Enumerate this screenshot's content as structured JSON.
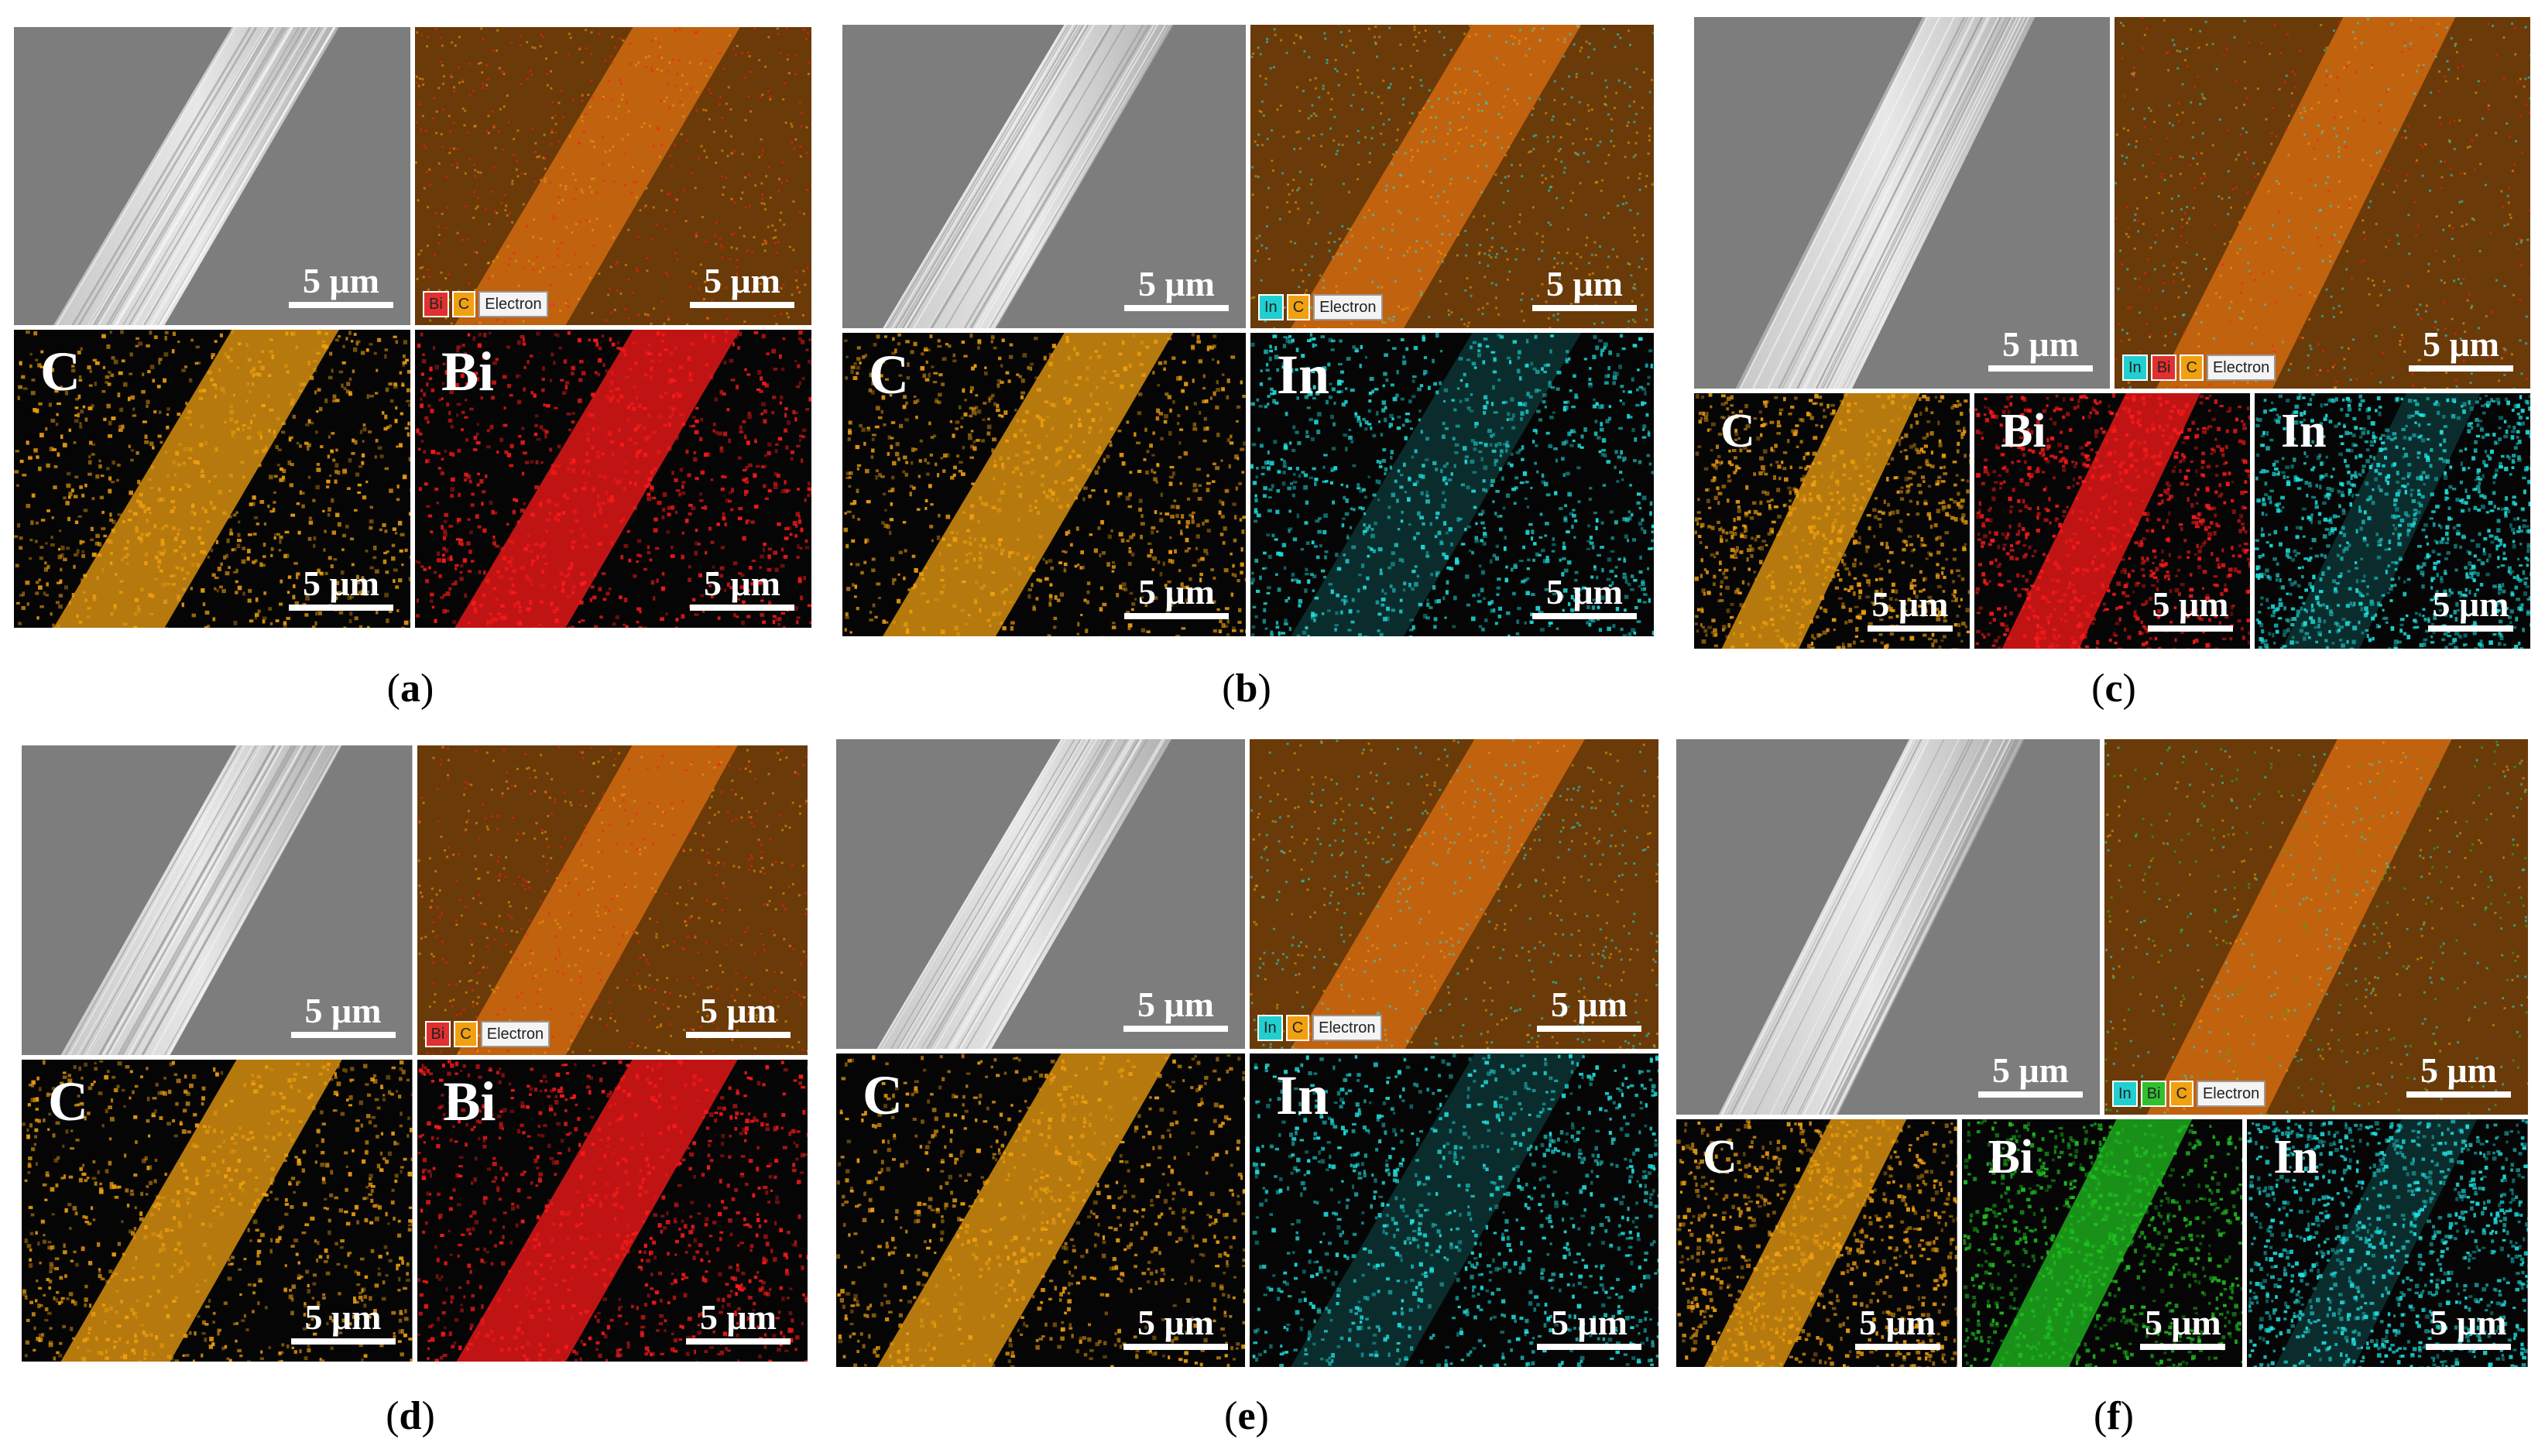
{
  "colors": {
    "carbon": "#f0a010",
    "bismuth_red": "#ff1a1a",
    "bismuth_green": "#20c020",
    "indium": "#1fe0e0",
    "sem_gray": "#8a8a8a",
    "legend_bi": "#e03030",
    "legend_c": "#f0a010",
    "legend_in": "#20d0d0",
    "legend_bi_green": "#30c030"
  },
  "panels": [
    {
      "id": "a",
      "caption": "a",
      "scale": "5 μm",
      "legend": [
        "Bi",
        "C",
        "Electron"
      ],
      "maps": [
        {
          "label": "C",
          "color": "carbon"
        },
        {
          "label": "Bi",
          "color": "bismuth_red"
        }
      ]
    },
    {
      "id": "b",
      "caption": "b",
      "scale": "5 μm",
      "legend": [
        "In",
        "C",
        "Electron"
      ],
      "maps": [
        {
          "label": "C",
          "color": "carbon"
        },
        {
          "label": "In",
          "color": "indium"
        }
      ]
    },
    {
      "id": "c",
      "caption": "c",
      "scale": "5 μm",
      "legend": [
        "In",
        "Bi",
        "C",
        "Electron"
      ],
      "maps": [
        {
          "label": "C",
          "color": "carbon"
        },
        {
          "label": "Bi",
          "color": "bismuth_red"
        },
        {
          "label": "In",
          "color": "indium"
        }
      ]
    },
    {
      "id": "d",
      "caption": "d",
      "scale": "5 μm",
      "legend": [
        "Bi",
        "C",
        "Electron"
      ],
      "maps": [
        {
          "label": "C",
          "color": "carbon"
        },
        {
          "label": "Bi",
          "color": "bismuth_red"
        }
      ]
    },
    {
      "id": "e",
      "caption": "e",
      "scale": "5 μm",
      "legend": [
        "In",
        "C",
        "Electron"
      ],
      "maps": [
        {
          "label": "C",
          "color": "carbon"
        },
        {
          "label": "In",
          "color": "indium"
        }
      ]
    },
    {
      "id": "f",
      "caption": "f",
      "scale": "5 μm",
      "legend": [
        "In",
        "Bi",
        "C",
        "Electron"
      ],
      "maps": [
        {
          "label": "C",
          "color": "carbon"
        },
        {
          "label": "Bi",
          "color": "bismuth_green"
        },
        {
          "label": "In",
          "color": "indium"
        }
      ]
    }
  ]
}
